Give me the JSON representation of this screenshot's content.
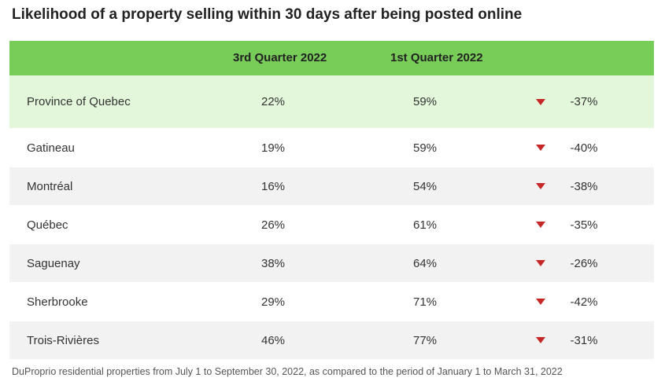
{
  "title": "Likelihood of a property selling within 30 days after being posted online",
  "footnote": "DuProprio residential properties from July 1 to September 30, 2022, as compared to the period of January 1 to March 31, 2022",
  "colors": {
    "header": "#78cc58",
    "highlight": "#e3f7da",
    "shaded": "#f2f2f2",
    "decrease_arrow": "#c62828"
  },
  "chart_data": {
    "type": "table",
    "title": "Likelihood of a property selling within 30 days after being posted online",
    "columns": [
      "",
      "3rd Quarter 2022",
      "1st Quarter 2022",
      ""
    ],
    "rows": [
      {
        "region": "Province of Quebec",
        "q3_2022": "22%",
        "q1_2022": "59%",
        "direction": "down",
        "change": "-37%"
      },
      {
        "region": "Gatineau",
        "q3_2022": "19%",
        "q1_2022": "59%",
        "direction": "down",
        "change": "-40%"
      },
      {
        "region": "Montréal",
        "q3_2022": "16%",
        "q1_2022": "54%",
        "direction": "down",
        "change": "-38%"
      },
      {
        "region": "Québec",
        "q3_2022": "26%",
        "q1_2022": "61%",
        "direction": "down",
        "change": "-35%"
      },
      {
        "region": "Saguenay",
        "q3_2022": "38%",
        "q1_2022": "64%",
        "direction": "down",
        "change": "-26%"
      },
      {
        "region": "Sherbrooke",
        "q3_2022": "29%",
        "q1_2022": "71%",
        "direction": "down",
        "change": "-42%"
      },
      {
        "region": "Trois-Rivières",
        "q3_2022": "46%",
        "q1_2022": "77%",
        "direction": "down",
        "change": "-31%"
      }
    ]
  }
}
